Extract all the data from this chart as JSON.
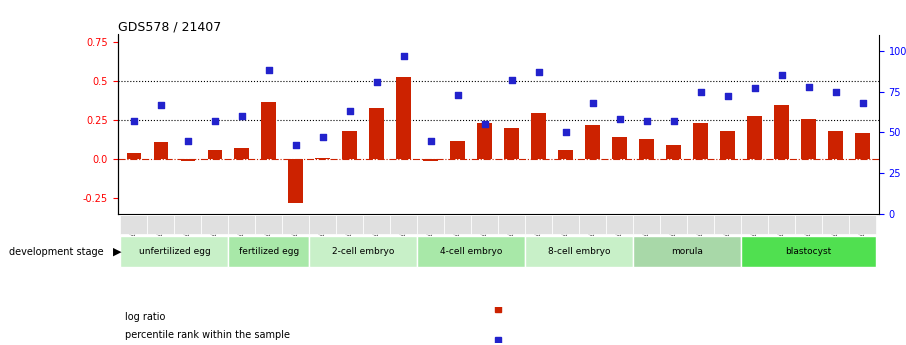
{
  "title": "GDS578 / 21407",
  "samples": [
    "GSM14658",
    "GSM14660",
    "GSM14661",
    "GSM14662",
    "GSM14663",
    "GSM14664",
    "GSM14665",
    "GSM14666",
    "GSM14667",
    "GSM14668",
    "GSM14677",
    "GSM14678",
    "GSM14679",
    "GSM14680",
    "GSM14681",
    "GSM14682",
    "GSM14683",
    "GSM14684",
    "GSM14685",
    "GSM14686",
    "GSM14687",
    "GSM14688",
    "GSM14689",
    "GSM14690",
    "GSM14691",
    "GSM14692",
    "GSM14693",
    "GSM14694"
  ],
  "log_ratio": [
    0.04,
    0.11,
    -0.01,
    0.06,
    0.07,
    0.37,
    -0.28,
    0.01,
    0.18,
    0.33,
    0.53,
    -0.01,
    0.12,
    0.23,
    0.2,
    0.3,
    0.06,
    0.22,
    0.14,
    0.13,
    0.09,
    0.23,
    0.18,
    0.28,
    0.35,
    0.26,
    0.18,
    0.17
  ],
  "percentile": [
    57,
    67,
    45,
    57,
    60,
    88,
    42,
    47,
    63,
    81,
    97,
    45,
    73,
    55,
    82,
    87,
    50,
    68,
    58,
    57,
    57,
    75,
    72,
    77,
    85,
    78,
    75,
    68
  ],
  "stages": [
    {
      "label": "unfertilized egg",
      "start": 0,
      "end": 4,
      "color": "#c8f0c8"
    },
    {
      "label": "fertilized egg",
      "start": 4,
      "end": 7,
      "color": "#a8e8a8"
    },
    {
      "label": "2-cell embryo",
      "start": 7,
      "end": 11,
      "color": "#c8f0c8"
    },
    {
      "label": "4-cell embryo",
      "start": 11,
      "end": 15,
      "color": "#a8e8a8"
    },
    {
      "label": "8-cell embryo",
      "start": 15,
      "end": 19,
      "color": "#c8f0c8"
    },
    {
      "label": "morula",
      "start": 19,
      "end": 23,
      "color": "#a8d8a8"
    },
    {
      "label": "blastocyst",
      "start": 23,
      "end": 28,
      "color": "#50e050"
    }
  ],
  "bar_color": "#cc2200",
  "dot_color": "#2222cc",
  "ylim_left": [
    -0.35,
    0.8
  ],
  "ylim_right": [
    0,
    110
  ],
  "yticks_left": [
    -0.25,
    0.0,
    0.25,
    0.5,
    0.75
  ],
  "yticks_right": [
    0,
    25,
    50,
    75,
    100
  ],
  "hlines": [
    0.0,
    0.25,
    0.5
  ],
  "bg_color": "#ffffff"
}
